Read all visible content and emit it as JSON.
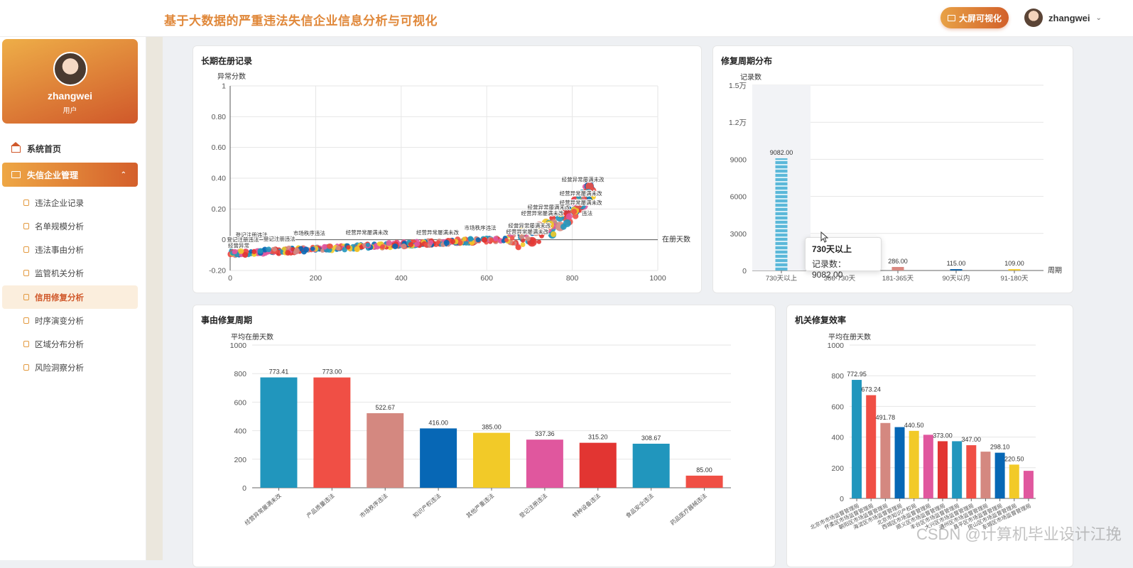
{
  "header": {
    "title": "基于大数据的严重违法失信企业信息分析与可视化",
    "bigscreen_label": "大屏可视化",
    "username": "zhangwei"
  },
  "sidebar": {
    "profile_name": "zhangwei",
    "profile_role": "用户",
    "home_label": "系统首页",
    "group_label": "失信企业管理",
    "items": [
      {
        "label": "违法企业记录"
      },
      {
        "label": "名单规模分析"
      },
      {
        "label": "违法事由分析"
      },
      {
        "label": "监管机关分析"
      },
      {
        "label": "信用修复分析",
        "active": true
      },
      {
        "label": "时序演变分析"
      },
      {
        "label": "区域分布分析"
      },
      {
        "label": "风险洞察分析"
      }
    ]
  },
  "colors": {
    "accent": "#d0582a",
    "accent_light": "#eea745",
    "title": "#e0883a"
  },
  "tooltip": {
    "title": "730天以上",
    "row": "记录数：9082.00"
  },
  "watermark": "CSDN @计算机毕业设计江挽",
  "chart_data": [
    {
      "type": "scatter",
      "title": "长期在册记录",
      "xlabel": "在册天数",
      "ylabel": "异常分数",
      "xlim": [
        0,
        1000
      ],
      "ylim": [
        -0.2,
        1
      ],
      "x_ticks": [
        "0",
        "200",
        "400",
        "600",
        "800",
        "1000"
      ],
      "y_ticks": [
        "-0.20",
        "0",
        "0.20",
        "0.40",
        "0.60",
        "0.80",
        "1"
      ],
      "labels": [
        {
          "text": "登记注册违法",
          "x": 50,
          "y": 0.02
        },
        {
          "text": "登记注册违法",
          "x": 30,
          "y": -0.01
        },
        {
          "text": "经营异常",
          "x": 20,
          "y": -0.05
        },
        {
          "text": "登记注册违法",
          "x": 115,
          "y": -0.005
        },
        {
          "text": "市场秩序违法",
          "x": 185,
          "y": 0.03
        },
        {
          "text": "经营异常屡满未改",
          "x": 320,
          "y": 0.035
        },
        {
          "text": "经营异常屡满未改",
          "x": 485,
          "y": 0.035
        },
        {
          "text": "市场秩序违法",
          "x": 585,
          "y": 0.065
        },
        {
          "text": "经营异常屡满未改",
          "x": 695,
          "y": 0.04
        },
        {
          "text": "经营异常屡满未改",
          "x": 700,
          "y": 0.08
        },
        {
          "text": "经营异常屡满未改",
          "x": 730,
          "y": 0.16
        },
        {
          "text": "经营异常屡满未改",
          "x": 745,
          "y": 0.2
        },
        {
          "text": "经营异常屡满未改",
          "x": 820,
          "y": 0.23
        },
        {
          "text": "经营异常屡满未改",
          "x": 820,
          "y": 0.29
        },
        {
          "text": "经营异常屡满未改",
          "x": 825,
          "y": 0.38
        },
        {
          "text": "违法",
          "x": 835,
          "y": 0.16
        }
      ]
    },
    {
      "type": "bar",
      "title": "修复周期分布",
      "xlabel": "周期",
      "ylabel": "记录数",
      "ylim": [
        0,
        15000
      ],
      "y_ticks": [
        "0",
        "3000",
        "6000",
        "9000",
        "1.2万",
        "1.5万"
      ],
      "categories": [
        "730天以上",
        "366-730天",
        "181-365天",
        "90天以内",
        "91-180天"
      ],
      "values": [
        9082.0,
        400.0,
        286.0,
        115.0,
        109.0
      ],
      "value_labels": [
        "9082.00",
        "",
        "286.00",
        "115.00",
        "109.00"
      ],
      "colors": [
        "#5bb8d9",
        "#d98880",
        "#d98880",
        "#1565a8",
        "#f0c830"
      ]
    },
    {
      "type": "bar",
      "title": "事由修复周期",
      "ylabel": "平均在册天数",
      "ylim": [
        0,
        1000
      ],
      "y_ticks": [
        "0",
        "200",
        "400",
        "600",
        "800",
        "1000"
      ],
      "categories": [
        "经营异常屡满未改",
        "产品质量违法",
        "市场秩序违法",
        "知识产权违法",
        "其他严重违法",
        "登记注册违法",
        "特种设备违法",
        "食品安全违法",
        "药品医疗器械违法"
      ],
      "values": [
        773.41,
        773.0,
        522.67,
        416.0,
        385.0,
        337.36,
        315.2,
        308.67,
        85.0
      ],
      "value_labels": [
        "773.41",
        "773.00",
        "522.67",
        "416.00",
        "385.00",
        "337.36",
        "315.20",
        "308.67",
        "85.00"
      ],
      "colors": [
        "#2196bd",
        "#f04f45",
        "#d48880",
        "#0767b5",
        "#f2ca28",
        "#e0579e",
        "#e23532",
        "#2196bd",
        "#f04f45"
      ]
    },
    {
      "type": "bar",
      "title": "机关修复效率",
      "ylabel": "平均在册天数",
      "ylim": [
        0,
        1000
      ],
      "y_ticks": [
        "0",
        "200",
        "400",
        "600",
        "800",
        "1000"
      ],
      "categories": [
        "北京市市场监督管理局",
        "怀柔区市场监督管理局",
        "朝阳区市场监督管理局",
        "海淀区市场监督管理局",
        "北京市知识产权局",
        "西城区市场监督管理局",
        "顺义区市场监督管理局",
        "丰台区市场监督管理局",
        "大兴区市场监督管理局",
        "通州区市场监督管理局",
        "昌平区市场监督管理局",
        "房山区市场监督管理局",
        "东城区市场监督管理局"
      ],
      "values": [
        772.95,
        673.24,
        491.78,
        465.0,
        440.5,
        415.0,
        373.0,
        373.0,
        347.0,
        305.0,
        298.1,
        220.5,
        180.0
      ],
      "value_labels": [
        "772.95",
        "673.24",
        "491.78",
        "",
        "440.50",
        "",
        "373.00",
        "",
        "347.00",
        "",
        "298.10",
        "220.50",
        ""
      ],
      "colors": [
        "#2196bd",
        "#f04f45",
        "#d48880",
        "#0767b5",
        "#f2ca28",
        "#e0579e",
        "#e23532",
        "#2196bd",
        "#f04f45",
        "#d48880",
        "#0767b5",
        "#f2ca28",
        "#e0579e"
      ]
    }
  ]
}
